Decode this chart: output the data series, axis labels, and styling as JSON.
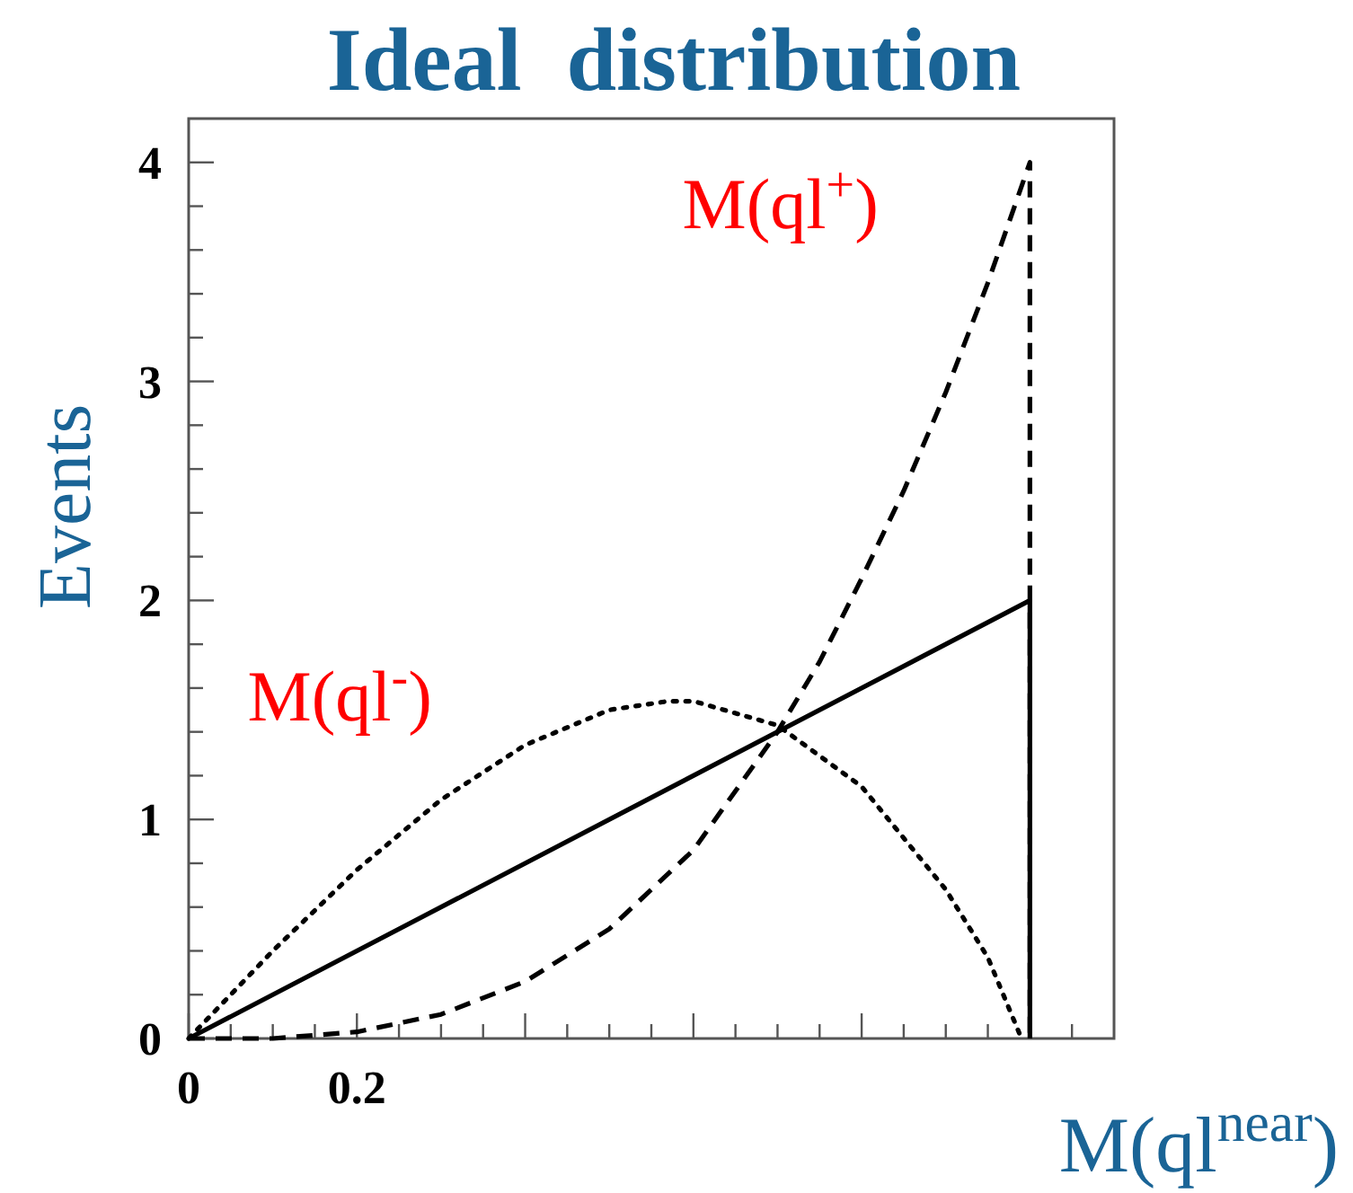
{
  "chart_data": {
    "type": "line",
    "title": "Ideal  distribution",
    "xlabel": "M(ql$^{near}$)",
    "ylabel": "Events",
    "xlim": [
      0,
      1.1
    ],
    "ylim": [
      0,
      4.2
    ],
    "xticks": [
      0,
      {
        "value": 0.05,
        "label": null
      },
      {
        "value": 0.1,
        "label": null
      },
      {
        "value": 0.15,
        "label": null
      },
      0.2,
      {
        "value": 0.25,
        "label": null
      },
      {
        "value": 0.3,
        "label": null
      },
      {
        "value": 0.35,
        "label": null
      },
      {
        "value": 0.4,
        "label": null
      },
      {
        "value": 0.45,
        "label": null
      },
      {
        "value": 0.5,
        "label": null
      },
      {
        "value": 0.55,
        "label": null
      },
      {
        "value": 0.6,
        "label": null
      },
      {
        "value": 0.65,
        "label": null
      },
      {
        "value": 0.7,
        "label": null
      },
      {
        "value": 0.75,
        "label": null
      },
      {
        "value": 0.8,
        "label": null
      },
      {
        "value": 0.85,
        "label": null
      },
      {
        "value": 0.9,
        "label": null
      },
      {
        "value": 0.95,
        "label": null
      },
      {
        "value": 1.0,
        "label": null
      },
      {
        "value": 1.05,
        "label": null
      }
    ],
    "yticks": [
      0,
      {
        "value": 0.2,
        "label": null
      },
      {
        "value": 0.4,
        "label": null
      },
      {
        "value": 0.6,
        "label": null
      },
      {
        "value": 0.8,
        "label": null
      },
      1,
      {
        "value": 1.2,
        "label": null
      },
      {
        "value": 1.4,
        "label": null
      },
      {
        "value": 1.6,
        "label": null
      },
      {
        "value": 1.8,
        "label": null
      },
      2,
      {
        "value": 2.2,
        "label": null
      },
      {
        "value": 2.4,
        "label": null
      },
      {
        "value": 2.6,
        "label": null
      },
      {
        "value": 2.8,
        "label": null
      },
      3,
      {
        "value": 3.2,
        "label": null
      },
      {
        "value": 3.4,
        "label": null
      },
      {
        "value": 3.6,
        "label": null
      },
      {
        "value": 3.8,
        "label": null
      },
      4
    ],
    "series": [
      {
        "color": "#000000",
        "line_style": "solid",
        "x": [
          0,
          1.0,
          1.0
        ],
        "values": [
          0,
          2,
          0
        ]
      },
      {
        "name": "M(ql$^{+}$)",
        "color": "#000000",
        "line_style": "dashed",
        "x": [
          0,
          0.1,
          0.2,
          0.3,
          0.4,
          0.5,
          0.6,
          0.7,
          0.75,
          0.8,
          0.85,
          0.9,
          0.95,
          1.0,
          1.0
        ],
        "values": [
          0,
          0.0,
          0.03,
          0.11,
          0.26,
          0.5,
          0.86,
          1.4,
          1.72,
          2.1,
          2.5,
          2.95,
          3.45,
          4.0,
          0
        ]
      },
      {
        "name": "M(ql$^{-}$)",
        "color": "#000000",
        "line_style": "dotted",
        "x": [
          0,
          0.1,
          0.2,
          0.3,
          0.4,
          0.5,
          0.57,
          0.6,
          0.7,
          0.8,
          0.9,
          0.95,
          0.99
        ],
        "values": [
          0,
          0.4,
          0.77,
          1.09,
          1.34,
          1.5,
          1.54,
          1.54,
          1.43,
          1.15,
          0.68,
          0.37,
          0
        ]
      }
    ]
  }
}
